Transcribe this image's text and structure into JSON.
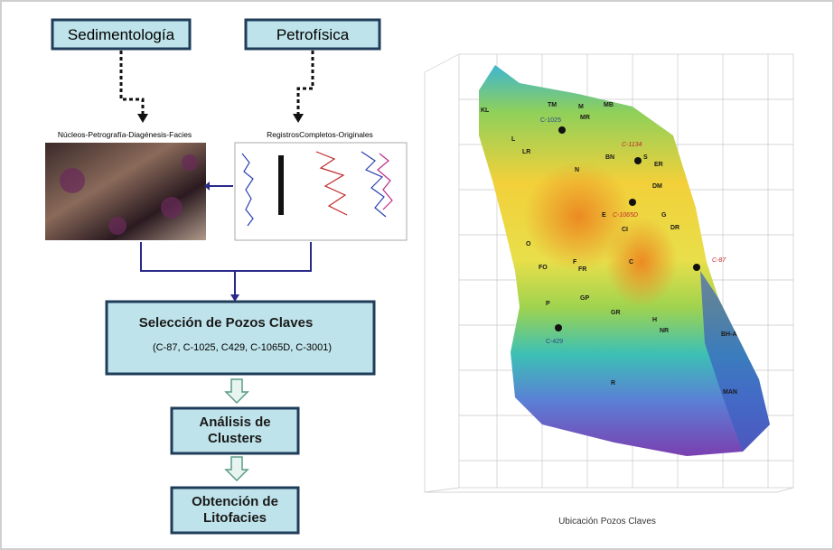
{
  "inputs": {
    "sedimentology": "Sedimentología",
    "petrophysics": "Petrofísica",
    "core_caption": "Núcleos-Petrografía-Diagénesis-Facies",
    "logs_caption": "RegistrosCompletos-Originales"
  },
  "flow": {
    "selection_title": "Selección de Pozos Claves",
    "selection_wells": "(C-87, C-1025, C429, C-1065D, C-3001)",
    "clusters": "Análisis de Clusters",
    "lithofacies": "Obtención de Litofacies"
  },
  "map": {
    "caption": "Ubicación Pozos Claves",
    "labels": [
      "KL",
      "TM",
      "M",
      "MB",
      "C-1025",
      "MR",
      "L",
      "LR",
      "C-1134",
      "BN",
      "N",
      "S",
      "ER",
      "DM",
      "E",
      "C-1065D",
      "CI",
      "G",
      "DR",
      "O",
      "C",
      "C-87",
      "FO",
      "F",
      "FR",
      "GP",
      "GR",
      "P",
      "H",
      "NR",
      "C-429",
      "BH-A",
      "R",
      "MAN"
    ]
  }
}
